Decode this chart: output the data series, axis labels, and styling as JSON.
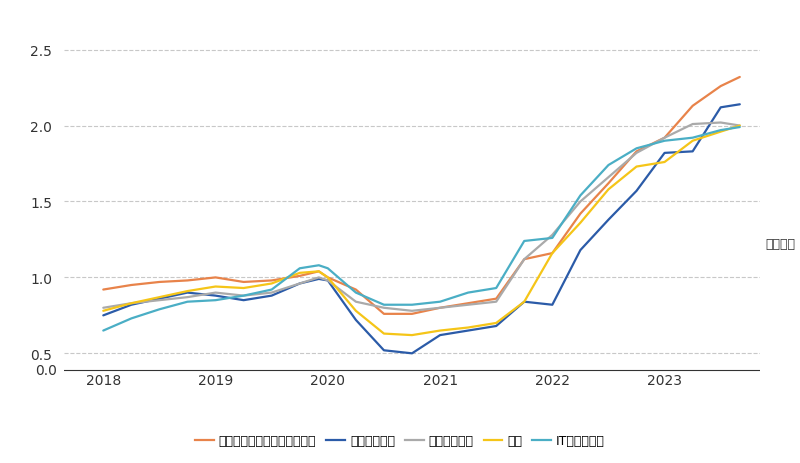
{
  "xlabel": "（年度）",
  "xlim": [
    2017.65,
    2023.85
  ],
  "ylim_main": [
    0.45,
    2.65
  ],
  "ylim_zero": [
    0.0,
    0.15
  ],
  "yticks": [
    0.5,
    1.0,
    1.5,
    2.0,
    2.5
  ],
  "xtick_years": [
    2018,
    2019,
    2020,
    2021,
    2022,
    2023
  ],
  "background_color": "#ffffff",
  "grid_color": "#c8c8c8",
  "series": [
    {
      "name": "電気・機械・化学エンジニア",
      "color": "#E8834A",
      "x": [
        2018.0,
        2018.25,
        2018.5,
        2018.75,
        2019.0,
        2019.25,
        2019.5,
        2019.75,
        2019.92,
        2020.0,
        2020.25,
        2020.5,
        2020.75,
        2021.0,
        2021.25,
        2021.5,
        2021.75,
        2022.0,
        2022.25,
        2022.5,
        2022.75,
        2023.0,
        2023.25,
        2023.5,
        2023.67
      ],
      "y": [
        0.92,
        0.95,
        0.97,
        0.98,
        1.0,
        0.97,
        0.98,
        1.01,
        1.04,
        1.0,
        0.92,
        0.76,
        0.76,
        0.8,
        0.83,
        0.86,
        1.12,
        1.16,
        1.42,
        1.62,
        1.83,
        1.92,
        2.13,
        2.26,
        2.32
      ]
    },
    {
      "name": "販売サービス",
      "color": "#2B5BA8",
      "x": [
        2018.0,
        2018.25,
        2018.5,
        2018.75,
        2019.0,
        2019.25,
        2019.5,
        2019.75,
        2019.92,
        2020.0,
        2020.25,
        2020.5,
        2020.75,
        2021.0,
        2021.25,
        2021.5,
        2021.75,
        2022.0,
        2022.25,
        2022.5,
        2022.75,
        2023.0,
        2023.25,
        2023.5,
        2023.67
      ],
      "y": [
        0.75,
        0.82,
        0.86,
        0.9,
        0.88,
        0.85,
        0.88,
        0.96,
        0.99,
        0.98,
        0.72,
        0.52,
        0.5,
        0.62,
        0.65,
        0.68,
        0.84,
        0.82,
        1.18,
        1.38,
        1.57,
        1.82,
        1.83,
        2.12,
        2.14
      ]
    },
    {
      "name": "事務系専門職",
      "color": "#AAAAAA",
      "x": [
        2018.0,
        2018.25,
        2018.5,
        2018.75,
        2019.0,
        2019.25,
        2019.5,
        2019.75,
        2019.92,
        2020.0,
        2020.25,
        2020.5,
        2020.75,
        2021.0,
        2021.25,
        2021.5,
        2021.75,
        2022.0,
        2022.25,
        2022.5,
        2022.75,
        2023.0,
        2023.25,
        2023.5,
        2023.67
      ],
      "y": [
        0.8,
        0.83,
        0.85,
        0.87,
        0.9,
        0.88,
        0.9,
        0.96,
        1.0,
        0.98,
        0.84,
        0.8,
        0.78,
        0.8,
        0.82,
        0.84,
        1.12,
        1.28,
        1.5,
        1.66,
        1.82,
        1.92,
        2.01,
        2.02,
        2.0
      ]
    },
    {
      "name": "営業",
      "color": "#F5C518",
      "x": [
        2018.0,
        2018.25,
        2018.5,
        2018.75,
        2019.0,
        2019.25,
        2019.5,
        2019.75,
        2019.92,
        2020.0,
        2020.25,
        2020.5,
        2020.75,
        2021.0,
        2021.25,
        2021.5,
        2021.75,
        2022.0,
        2022.25,
        2022.5,
        2022.75,
        2023.0,
        2023.25,
        2023.5,
        2023.67
      ],
      "y": [
        0.78,
        0.83,
        0.87,
        0.91,
        0.94,
        0.93,
        0.96,
        1.03,
        1.04,
        1.0,
        0.78,
        0.63,
        0.62,
        0.65,
        0.67,
        0.7,
        0.84,
        1.16,
        1.36,
        1.58,
        1.73,
        1.76,
        1.9,
        1.96,
        2.0
      ]
    },
    {
      "name": "ITエンジニア",
      "color": "#4AAEC5",
      "x": [
        2018.0,
        2018.25,
        2018.5,
        2018.75,
        2019.0,
        2019.25,
        2019.5,
        2019.75,
        2019.92,
        2020.0,
        2020.25,
        2020.5,
        2020.75,
        2021.0,
        2021.25,
        2021.5,
        2021.75,
        2022.0,
        2022.25,
        2022.5,
        2022.75,
        2023.0,
        2023.25,
        2023.5,
        2023.67
      ],
      "y": [
        0.65,
        0.73,
        0.79,
        0.84,
        0.85,
        0.88,
        0.92,
        1.06,
        1.08,
        1.06,
        0.9,
        0.82,
        0.82,
        0.84,
        0.9,
        0.93,
        1.24,
        1.26,
        1.54,
        1.74,
        1.85,
        1.9,
        1.92,
        1.97,
        1.99
      ]
    }
  ],
  "legend_names": [
    "電気・機械・化学エンジニア",
    "販売サービス",
    "事務系専門職",
    "営業",
    "ITエンジニア"
  ],
  "legend_colors": [
    "#E8834A",
    "#2B5BA8",
    "#AAAAAA",
    "#F5C518",
    "#4AAEC5"
  ]
}
